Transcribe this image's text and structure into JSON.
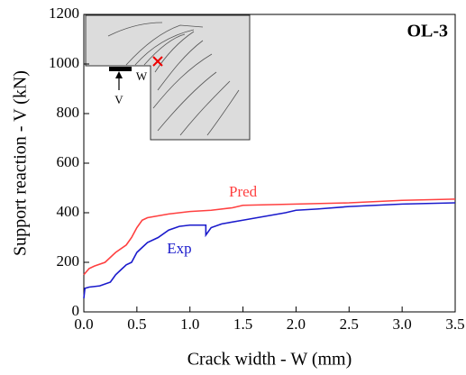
{
  "chart_data": {
    "type": "line",
    "panel_label": "OL-3",
    "x_label": "Crack width - W (mm)",
    "y_label": "Support reaction - V (kN)",
    "xlim": [
      0,
      3.5
    ],
    "ylim": [
      0,
      1200
    ],
    "xticks": [
      {
        "value": 0,
        "label": "0.0"
      },
      0.5,
      {
        "value": 1,
        "label": "1.0"
      },
      1.5,
      {
        "value": 2,
        "label": "2.0"
      },
      2.5,
      {
        "value": 3,
        "label": "3.0"
      },
      3.5
    ],
    "yticks": [
      0,
      200,
      400,
      600,
      800,
      1000,
      1200
    ],
    "series": [
      {
        "name": "Pred",
        "color": "#ff4040",
        "x": [
          0,
          0.05,
          0.1,
          0.2,
          0.3,
          0.4,
          0.45,
          0.5,
          0.55,
          0.6,
          0.8,
          1.0,
          1.2,
          1.4,
          1.5,
          2.0,
          2.5,
          3.0,
          3.5
        ],
        "values": [
          150,
          175,
          185,
          200,
          240,
          270,
          300,
          340,
          370,
          380,
          395,
          405,
          410,
          420,
          430,
          435,
          440,
          450,
          455
        ]
      },
      {
        "name": "Exp",
        "color": "#1a1acc",
        "x": [
          0,
          0.01,
          0.05,
          0.15,
          0.25,
          0.3,
          0.35,
          0.4,
          0.45,
          0.5,
          0.55,
          0.6,
          0.7,
          0.8,
          0.9,
          1.0,
          1.15,
          1.15,
          1.2,
          1.3,
          1.5,
          1.7,
          1.9,
          2.0,
          2.2,
          2.5,
          3.0,
          3.5
        ],
        "values": [
          55,
          95,
          100,
          105,
          120,
          150,
          170,
          190,
          200,
          240,
          260,
          280,
          300,
          330,
          345,
          350,
          350,
          310,
          340,
          355,
          370,
          385,
          400,
          410,
          415,
          425,
          435,
          440
        ]
      }
    ],
    "annotations": [
      {
        "text": "Pred",
        "x": 1.5,
        "y": 480
      },
      {
        "text": "Exp",
        "x": 0.9,
        "y": 250
      }
    ],
    "inset_labels": [
      "V",
      "W"
    ]
  }
}
